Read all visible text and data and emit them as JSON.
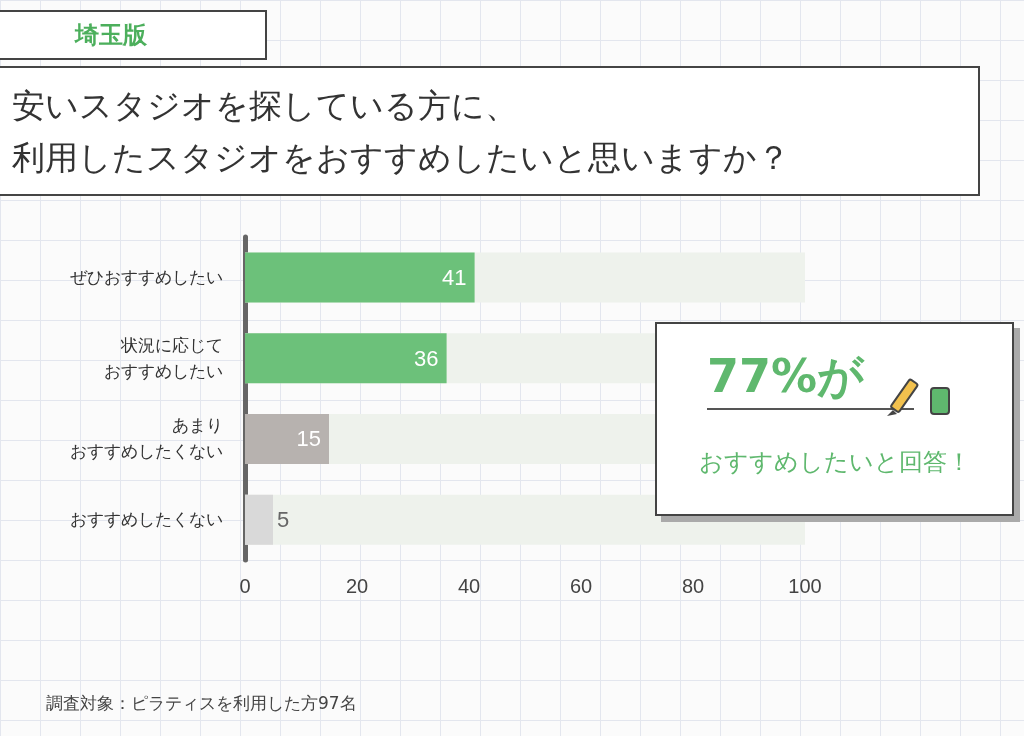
{
  "chart_data": {
    "type": "bar",
    "orientation": "horizontal",
    "subtitle": "埼玉版",
    "title": "安いスタジオを探している方に、利用したスタジオをおすすめしたいと思いますか？",
    "categories": [
      "ぜひおすすめしたい",
      "状況に応じておすすめしたい",
      "あまりおすすめしたくない",
      "おすすめしたくない"
    ],
    "values": [
      41,
      36,
      15,
      5
    ],
    "colors": [
      "#6cc17a",
      "#6cc17a",
      "#b7b2af",
      "#d9d9d9"
    ],
    "xlim": [
      0,
      100
    ],
    "xticks": [
      0,
      20,
      40,
      60,
      80,
      100
    ],
    "data_labels": true,
    "grid": false,
    "annotations": [
      "調査対象：ピラティスを利用した方97名",
      "77%が",
      "おすすめしたいと回答！"
    ]
  }
}
